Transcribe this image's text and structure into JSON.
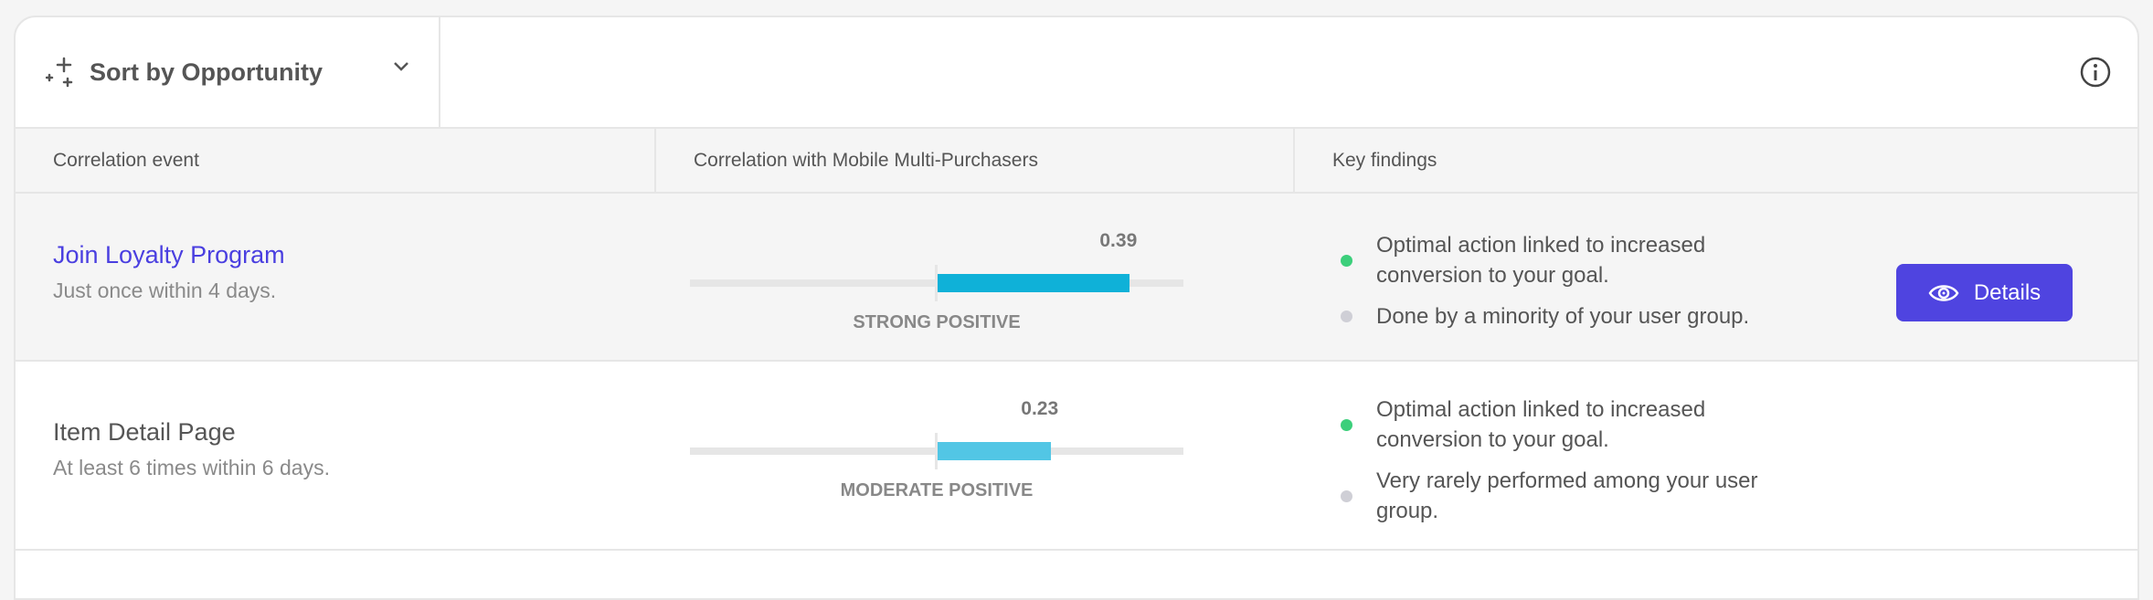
{
  "toolbar": {
    "sort_label": "Sort by Opportunity",
    "sort_icon": "sparkles-icon",
    "info_icon": "info-icon"
  },
  "columns": [
    "Correlation event",
    "Correlation with Mobile Multi-Purchasers",
    "Key findings"
  ],
  "colors": {
    "accent": "#4f44e0",
    "strong_bar": "#0fb1d8",
    "moderate_bar": "#52c6e5",
    "positive_dot": "#3ccf7b",
    "neutral_dot": "#cfcfd6"
  },
  "scale_range": [
    -0.5,
    0.5
  ],
  "rows": [
    {
      "name": "Join Loyalty Program",
      "detail": "Just once within 4 days.",
      "value": 0.39,
      "value_label": "0.39",
      "category": "STRONG POSITIVE",
      "findings": [
        {
          "text": "Optimal action linked to increased conversion to your goal.",
          "status": "positive"
        },
        {
          "text": "Done by a minority of your user group.",
          "status": "neutral"
        }
      ],
      "button": "Details"
    },
    {
      "name": "Item Detail Page",
      "detail": "At least 6 times within 6 days.",
      "value": 0.23,
      "value_label": "0.23",
      "category": "MODERATE POSITIVE",
      "findings": [
        {
          "text": "Optimal action linked to increased conversion to your goal.",
          "status": "positive"
        },
        {
          "text": "Very rarely performed among your user group.",
          "status": "neutral"
        }
      ]
    }
  ]
}
